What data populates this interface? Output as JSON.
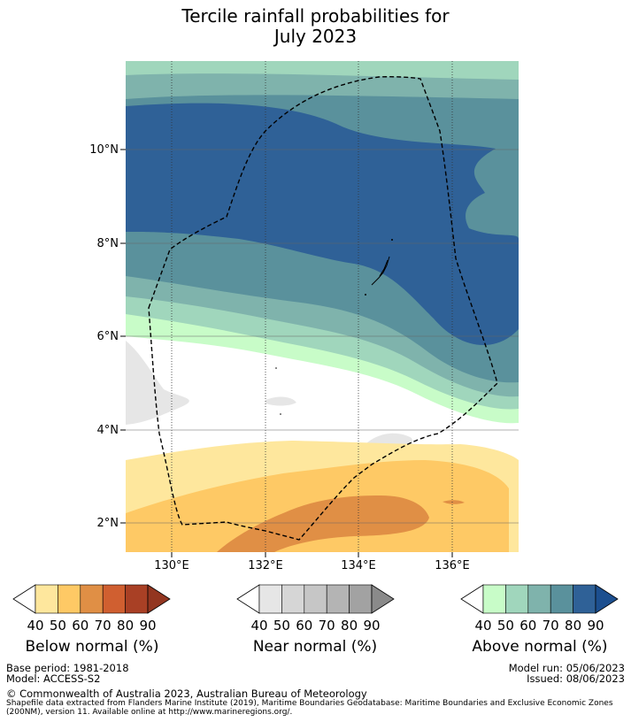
{
  "title": {
    "line1": "Tercile rainfall probabilities for",
    "line2": "July 2023"
  },
  "map": {
    "lat_labels": [
      "10°N",
      "8°N",
      "6°N",
      "4°N",
      "2°N"
    ],
    "lon_labels": [
      "130°E",
      "132°E",
      "134°E",
      "136°E"
    ],
    "lat_range": [
      1.3,
      11.9
    ],
    "lon_range": [
      129.0,
      137.5
    ]
  },
  "colorbars": {
    "below": {
      "title": "Below normal (%)",
      "ticks": [
        "40",
        "50",
        "60",
        "70",
        "80",
        "90"
      ],
      "colors": [
        "#fee79d",
        "#fec965",
        "#e08f45",
        "#d05f30",
        "#a94025"
      ],
      "over": "#933620"
    },
    "near": {
      "title": "Near normal (%)",
      "ticks": [
        "40",
        "50",
        "60",
        "70",
        "80",
        "90"
      ],
      "colors": [
        "#e6e6e6",
        "#d6d6d6",
        "#c6c6c6",
        "#b4b4b4",
        "#a2a2a2"
      ],
      "over": "#8a8a8a"
    },
    "above": {
      "title": "Above normal (%)",
      "ticks": [
        "40",
        "50",
        "60",
        "70",
        "80",
        "90"
      ],
      "colors": [
        "#c8fcc8",
        "#a0d6bc",
        "#7fb3ac",
        "#5a919c",
        "#2f6197"
      ],
      "over": "#1c4f8f"
    }
  },
  "footer": {
    "base_period": "Base period: 1981-2018",
    "model": "Model: ACCESS-S2",
    "model_run": "Model run: 05/06/2023",
    "issued": "Issued: 08/06/2023",
    "copyright": "© Commonwealth of Australia 2023, Australian Bureau of Meteorology",
    "shapefile_line1": "Shapefile data extracted from Flanders Marine Institute (2019), Maritime Boundaries Geodatabase: Maritime Boundaries and Exclusive Economic Zones",
    "shapefile_line2": "(200NM), version 11. Available online at http://www.marineregions.org/."
  }
}
